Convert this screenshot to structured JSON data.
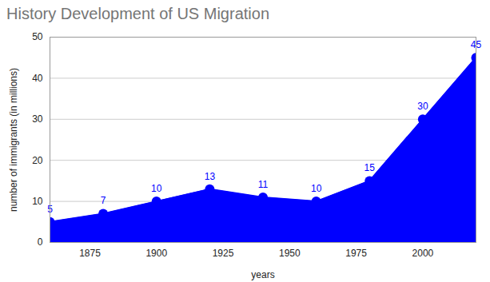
{
  "chart_data": {
    "type": "area",
    "title": "History Development of US Migration",
    "x_label": "years",
    "y_label": "number of immigrants (in millions)",
    "x": [
      1860,
      1880,
      1900,
      1920,
      1940,
      1960,
      1980,
      2000,
      2020
    ],
    "values": [
      5,
      7,
      10,
      13,
      11,
      10,
      15,
      30,
      45
    ],
    "color": "#0000ff",
    "marker": "circle",
    "data_labels": true,
    "xlim": [
      1860,
      2020
    ],
    "xticks": [
      1875,
      1900,
      1925,
      1950,
      1975,
      2000
    ],
    "ylim": [
      0,
      50
    ],
    "yticks": [
      0,
      10,
      20,
      30,
      40,
      50
    ],
    "grid": true
  }
}
